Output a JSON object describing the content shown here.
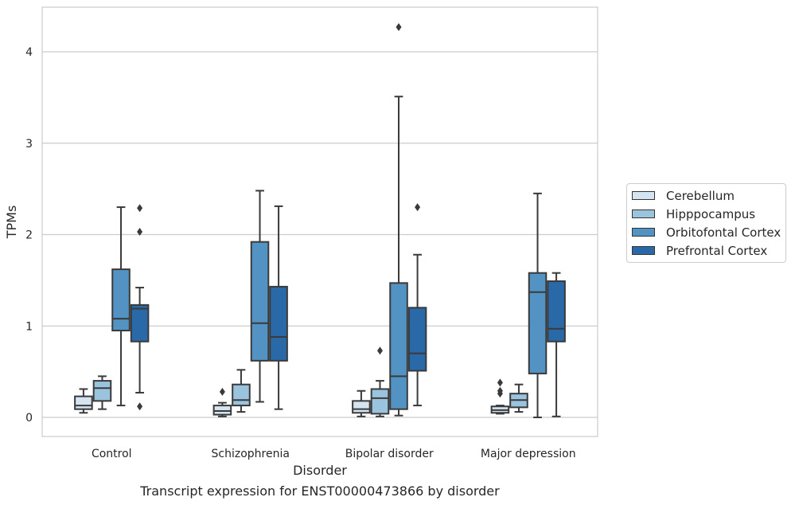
{
  "chart_data": {
    "type": "box",
    "title": "Transcript expression for ENST00000473866 by disorder",
    "xlabel": "Disorder",
    "ylabel": "TPMs",
    "ylim": [
      -0.2,
      4.5
    ],
    "yticks": [
      0,
      1,
      2,
      3,
      4
    ],
    "categories": [
      "Control",
      "Schizophrenia",
      "Bipolar disorder",
      "Major depression"
    ],
    "grid": "horizontal",
    "legend_position": "right",
    "series": [
      {
        "name": "Cerebellum",
        "color": "#d5e4f1",
        "boxes": [
          {
            "whisker_low": 0.05,
            "q1": 0.09,
            "median": 0.13,
            "q3": 0.23,
            "whisker_high": 0.31,
            "outliers": []
          },
          {
            "whisker_low": 0.01,
            "q1": 0.03,
            "median": 0.07,
            "q3": 0.13,
            "whisker_high": 0.16,
            "outliers": [
              0.28
            ]
          },
          {
            "whisker_low": 0.01,
            "q1": 0.05,
            "median": 0.09,
            "q3": 0.18,
            "whisker_high": 0.29,
            "outliers": []
          },
          {
            "whisker_low": 0.04,
            "q1": 0.05,
            "median": 0.08,
            "q3": 0.12,
            "whisker_high": 0.13,
            "outliers": [
              0.26,
              0.29,
              0.38
            ]
          }
        ]
      },
      {
        "name": "Hipppocampus",
        "color": "#9ac3de",
        "boxes": [
          {
            "whisker_low": 0.09,
            "q1": 0.18,
            "median": 0.32,
            "q3": 0.4,
            "whisker_high": 0.45,
            "outliers": []
          },
          {
            "whisker_low": 0.06,
            "q1": 0.13,
            "median": 0.19,
            "q3": 0.36,
            "whisker_high": 0.52,
            "outliers": []
          },
          {
            "whisker_low": 0.01,
            "q1": 0.04,
            "median": 0.21,
            "q3": 0.31,
            "whisker_high": 0.4,
            "outliers": [
              0.73
            ]
          },
          {
            "whisker_low": 0.06,
            "q1": 0.11,
            "median": 0.19,
            "q3": 0.26,
            "whisker_high": 0.36,
            "outliers": []
          }
        ]
      },
      {
        "name": "Orbitofontal Cortex",
        "color": "#5293c3",
        "boxes": [
          {
            "whisker_low": 0.13,
            "q1": 0.95,
            "median": 1.08,
            "q3": 1.62,
            "whisker_high": 2.3,
            "outliers": []
          },
          {
            "whisker_low": 0.17,
            "q1": 0.62,
            "median": 1.03,
            "q3": 1.92,
            "whisker_high": 2.48,
            "outliers": []
          },
          {
            "whisker_low": 0.02,
            "q1": 0.09,
            "median": 0.45,
            "q3": 1.47,
            "whisker_high": 3.51,
            "outliers": [
              4.27
            ]
          },
          {
            "whisker_low": 0.0,
            "q1": 0.48,
            "median": 1.37,
            "q3": 1.58,
            "whisker_high": 2.45,
            "outliers": []
          }
        ]
      },
      {
        "name": "Prefrontal Cortex",
        "color": "#2a69a8",
        "boxes": [
          {
            "whisker_low": 0.27,
            "q1": 0.83,
            "median": 1.19,
            "q3": 1.23,
            "whisker_high": 1.42,
            "outliers": [
              0.12,
              2.03,
              2.29
            ]
          },
          {
            "whisker_low": 0.09,
            "q1": 0.62,
            "median": 0.88,
            "q3": 1.43,
            "whisker_high": 2.31,
            "outliers": []
          },
          {
            "whisker_low": 0.13,
            "q1": 0.51,
            "median": 0.7,
            "q3": 1.2,
            "whisker_high": 1.78,
            "outliers": [
              2.3
            ]
          },
          {
            "whisker_low": 0.01,
            "q1": 0.83,
            "median": 0.97,
            "q3": 1.49,
            "whisker_high": 1.58,
            "outliers": []
          }
        ]
      }
    ]
  }
}
